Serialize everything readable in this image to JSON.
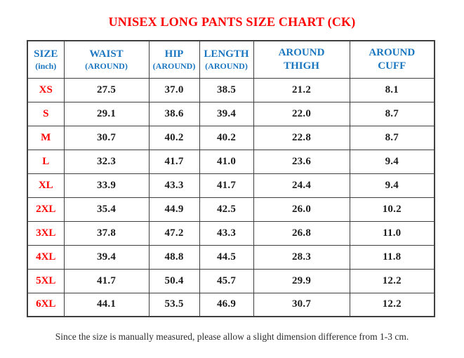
{
  "title": "UNISEX LONG PANTS SIZE CHART (CK)",
  "footnote": "Since the size is manually measured, please allow a slight dimension difference from 1-3 cm.",
  "colors": {
    "title_red": "#FE0000",
    "header_blue": "#1B76C0",
    "size_label_red": "#FE0000",
    "value_text": "#1C1C1C",
    "border": "#3F3F3F",
    "background": "#FFFFFF"
  },
  "chart_data": {
    "type": "table",
    "title": "UNISEX LONG PANTS SIZE CHART (CK)",
    "columns": [
      {
        "label": "SIZE",
        "sub": "(inch)"
      },
      {
        "label": "WAIST",
        "sub": "(AROUND)"
      },
      {
        "label": "HIP",
        "sub": "(AROUND)"
      },
      {
        "label": "LENGTH",
        "sub": "(AROUND)"
      },
      {
        "label": "AROUND",
        "sub": "THIGH"
      },
      {
        "label": "AROUND",
        "sub": "CUFF"
      }
    ],
    "rows": [
      {
        "size": "XS",
        "values": [
          "27.5",
          "37.0",
          "38.5",
          "21.2",
          "8.1"
        ]
      },
      {
        "size": "S",
        "values": [
          "29.1",
          "38.6",
          "39.4",
          "22.0",
          "8.7"
        ]
      },
      {
        "size": "M",
        "values": [
          "30.7",
          "40.2",
          "40.2",
          "22.8",
          "8.7"
        ]
      },
      {
        "size": "L",
        "values": [
          "32.3",
          "41.7",
          "41.0",
          "23.6",
          "9.4"
        ]
      },
      {
        "size": "XL",
        "values": [
          "33.9",
          "43.3",
          "41.7",
          "24.4",
          "9.4"
        ]
      },
      {
        "size": "2XL",
        "values": [
          "35.4",
          "44.9",
          "42.5",
          "26.0",
          "10.2"
        ]
      },
      {
        "size": "3XL",
        "values": [
          "37.8",
          "47.2",
          "43.3",
          "26.8",
          "11.0"
        ]
      },
      {
        "size": "4XL",
        "values": [
          "39.4",
          "48.8",
          "44.5",
          "28.3",
          "11.8"
        ]
      },
      {
        "size": "5XL",
        "values": [
          "41.7",
          "50.4",
          "45.7",
          "29.9",
          "12.2"
        ]
      },
      {
        "size": "6XL",
        "values": [
          "44.1",
          "53.5",
          "46.9",
          "30.7",
          "12.2"
        ]
      }
    ]
  }
}
